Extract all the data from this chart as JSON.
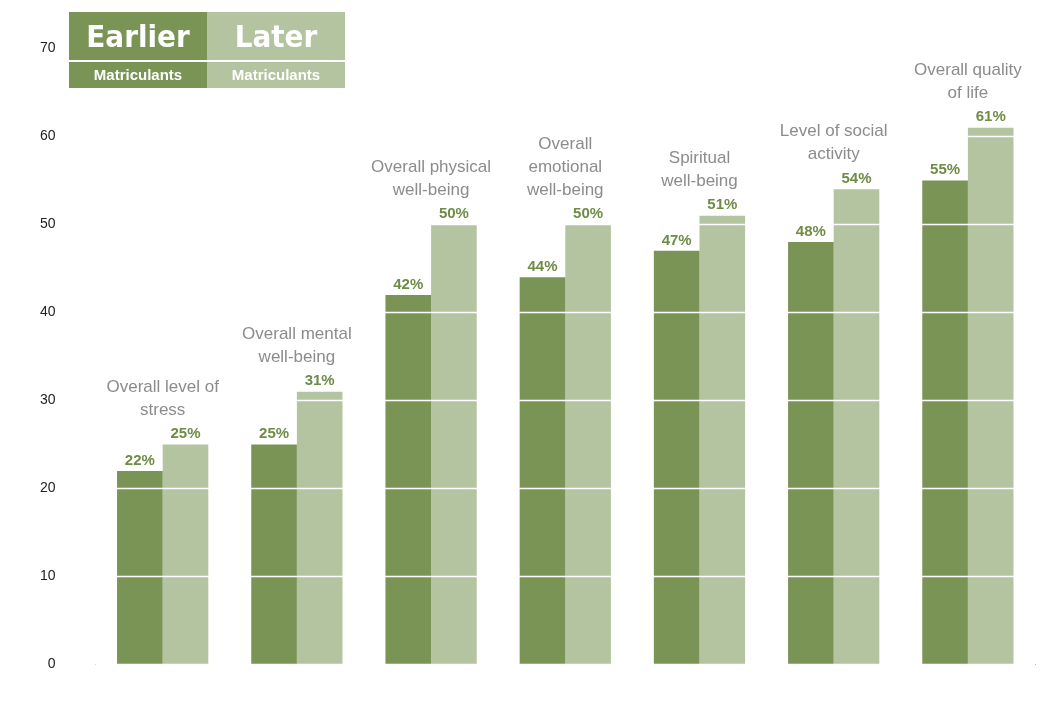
{
  "chart_data": {
    "type": "bar",
    "categories": [
      "Overall level of stress",
      "Overall mental well-being",
      "Overall physical well-being",
      "Overall emotional well-being",
      "Spiritual well-being",
      "Level of social activity",
      "Overall quality of life"
    ],
    "series": [
      {
        "name": "Earlier Matriculants",
        "color": "#7a9455",
        "values": [
          22,
          25,
          42,
          44,
          47,
          48,
          55
        ],
        "value_labels": [
          "22%",
          "25%",
          "42%",
          "44%",
          "47%",
          "48%",
          "55%"
        ]
      },
      {
        "name": "Later Matriculants",
        "color": "#b5c4a0",
        "values": [
          25,
          31,
          50,
          50,
          51,
          54,
          61
        ],
        "value_labels": [
          "25%",
          "31%",
          "50%",
          "50%",
          "51%",
          "54%",
          "61%"
        ]
      }
    ],
    "ylim": [
      0,
      70
    ],
    "yticks": [
      0,
      10,
      20,
      30,
      40,
      50,
      60,
      70
    ],
    "grid": "y",
    "legend": "top left",
    "tick_labels": "y"
  }
}
